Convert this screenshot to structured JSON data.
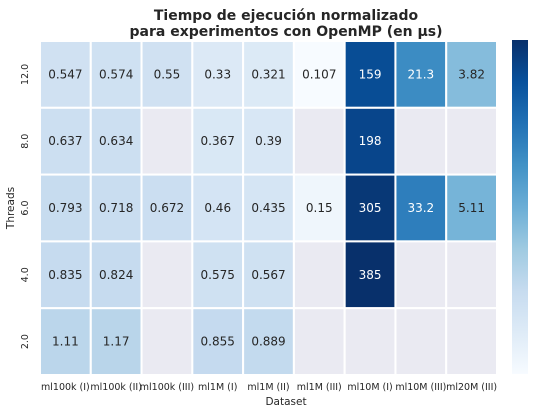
{
  "chart_data": {
    "type": "heatmap",
    "title_lines": [
      "Tiempo de ejecución normalizado",
      "para experimentos con OpenMP (en µs)"
    ],
    "xlabel": "Dataset",
    "ylabel": "Threads",
    "x_categories": [
      "ml100k (I)",
      "ml100k (II)",
      "ml100k (III)",
      "ml1M (I)",
      "ml1M (II)",
      "ml1M (III)",
      "ml10M (I)",
      "ml10M (III)",
      "ml20M (III)"
    ],
    "y_categories": [
      "12.0",
      "8.0",
      "6.0",
      "4.0",
      "2.0"
    ],
    "values": [
      [
        0.547,
        0.574,
        0.55,
        0.33,
        0.321,
        0.107,
        159,
        21.3,
        3.82
      ],
      [
        0.637,
        0.634,
        null,
        0.367,
        0.39,
        null,
        198,
        null,
        null
      ],
      [
        0.793,
        0.718,
        0.672,
        0.46,
        0.435,
        0.15,
        305,
        33.2,
        5.11
      ],
      [
        0.835,
        0.824,
        null,
        0.575,
        0.567,
        null,
        385,
        null,
        null
      ],
      [
        1.11,
        1.17,
        null,
        0.855,
        0.889,
        null,
        null,
        null,
        null
      ]
    ],
    "labels": [
      [
        "0.547",
        "0.574",
        "0.55",
        "0.33",
        "0.321",
        "0.107",
        "159",
        "21.3",
        "3.82"
      ],
      [
        "0.637",
        "0.634",
        "",
        "0.367",
        "0.39",
        "",
        "198",
        "",
        ""
      ],
      [
        "0.793",
        "0.718",
        "0.672",
        "0.46",
        "0.435",
        "0.15",
        "305",
        "33.2",
        "5.11"
      ],
      [
        "0.835",
        "0.824",
        "",
        "0.575",
        "0.567",
        "",
        "385",
        "",
        ""
      ],
      [
        "1.11",
        "1.17",
        "",
        "0.855",
        "0.889",
        "",
        "",
        "",
        ""
      ]
    ],
    "colorscale": "Blues",
    "color_scale_type": "log",
    "missing_color": "#eaeaf2",
    "colorbar": "right, no tick labels"
  }
}
